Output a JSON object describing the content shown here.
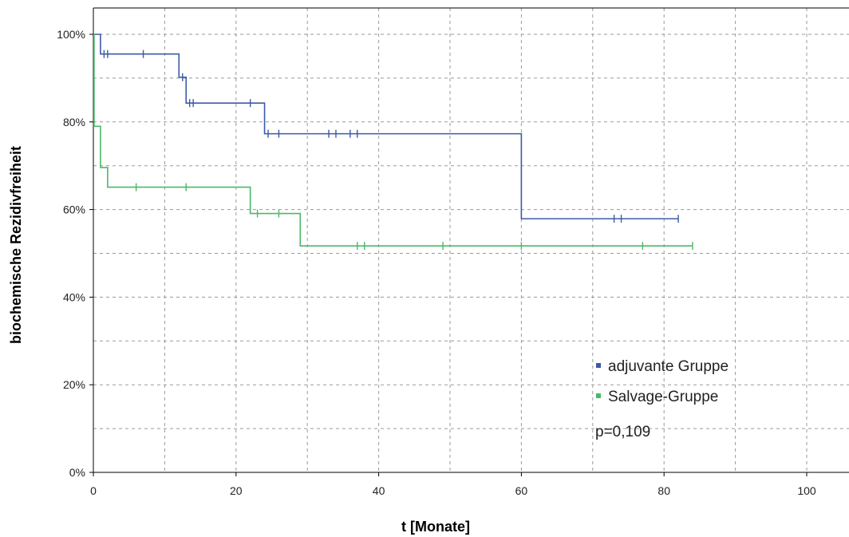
{
  "chart_data": {
    "type": "line",
    "subtype": "kaplan-meier",
    "title": "",
    "xlabel": "t [Monate]",
    "ylabel": "biochemische Rezidivfreiheit",
    "xlim": [
      0,
      105
    ],
    "ylim": [
      0,
      100
    ],
    "x_ticks": [
      0,
      20,
      40,
      60,
      80,
      100
    ],
    "x_tick_labels": [
      "0",
      "20",
      "40",
      "60",
      "80",
      "100"
    ],
    "y_ticks": [
      0,
      20,
      40,
      60,
      80,
      100
    ],
    "y_tick_labels": [
      "0%",
      "20%",
      "40%",
      "60%",
      "80%",
      "100%"
    ],
    "grid": true,
    "grid_style": "dashed",
    "legend_position": "bottom-right",
    "series": [
      {
        "name": "adjuvante Gruppe",
        "color": "#3d5aa8",
        "steps": [
          [
            0,
            100
          ],
          [
            1,
            95.5
          ],
          [
            12,
            90.2
          ],
          [
            13,
            84.3
          ],
          [
            24,
            77.3
          ],
          [
            60,
            57.9
          ]
        ],
        "end_x": 82,
        "censored": [
          [
            1.5,
            95.5
          ],
          [
            2,
            95.5
          ],
          [
            7,
            95.5
          ],
          [
            12.5,
            90.2
          ],
          [
            13.5,
            84.3
          ],
          [
            14,
            84.3
          ],
          [
            22,
            84.3
          ],
          [
            24.5,
            77.3
          ],
          [
            26,
            77.3
          ],
          [
            33,
            77.3
          ],
          [
            34,
            77.3
          ],
          [
            36,
            77.3
          ],
          [
            37,
            77.3
          ],
          [
            73,
            57.9
          ],
          [
            74,
            57.9
          ],
          [
            82,
            57.9
          ]
        ]
      },
      {
        "name": "Salvage-Gruppe",
        "color": "#4cb86a",
        "steps": [
          [
            0,
            100
          ],
          [
            0.1,
            79
          ],
          [
            1,
            69.6
          ],
          [
            2,
            65.1
          ],
          [
            22,
            59.1
          ],
          [
            29,
            51.7
          ]
        ],
        "end_x": 84,
        "censored": [
          [
            6,
            65.1
          ],
          [
            13,
            65.1
          ],
          [
            23,
            59.1
          ],
          [
            26,
            59.1
          ],
          [
            37,
            51.7
          ],
          [
            38,
            51.7
          ],
          [
            49,
            51.7
          ],
          [
            60,
            51.7
          ],
          [
            77,
            51.7
          ],
          [
            84,
            51.7
          ]
        ]
      }
    ],
    "annotation": "p=0,109"
  }
}
